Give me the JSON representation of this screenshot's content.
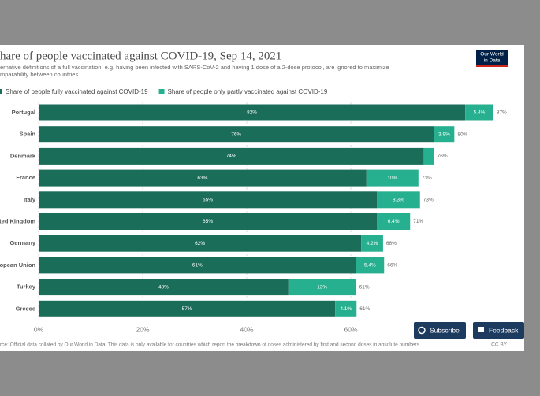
{
  "chart_data": {
    "type": "stacked-bar-horizontal",
    "title": "hare of people vaccinated against COVID-19, Sep 14, 2021",
    "subtitle": [
      "ernative definitions of a full vaccination, e.g. having been infected with SARS-CoV-2 and having 1 dose of a 2-dose protocol, are ignored to maximize",
      "mparability between countries."
    ],
    "categories": [
      "Portugal",
      "Spain",
      "Denmark",
      "France",
      "Italy",
      "ted Kingdom",
      "Germany",
      "opean Union",
      "Turkey",
      "Greece"
    ],
    "series": [
      {
        "name": "Share of people fully vaccinated against COVID-19",
        "color": "#1a6d58",
        "values": [
          82,
          76,
          74,
          63,
          65,
          65,
          62,
          61,
          48,
          57
        ],
        "value_labels": [
          "82%",
          "76%",
          "74%",
          "63%",
          "65%",
          "65%",
          "62%",
          "61%",
          "48%",
          "57%"
        ]
      },
      {
        "name": "Share of people only partly vaccinated against COVID-19",
        "color": "#27b08f",
        "values": [
          5.4,
          3.9,
          2,
          10,
          8.3,
          6.4,
          4.2,
          5.4,
          13,
          4.1
        ],
        "value_labels": [
          "5.4%",
          "3.9%",
          null,
          "10%",
          "8.3%",
          "6.4%",
          "4.2%",
          "5.4%",
          "13%",
          "4.1%"
        ]
      }
    ],
    "totals": [
      87,
      80,
      76,
      73,
      73,
      71,
      66,
      66,
      61,
      61
    ],
    "total_labels": [
      "87%",
      "80%",
      "76%",
      "73%",
      "73%",
      "71%",
      "66%",
      "66%",
      "61%",
      "61%"
    ],
    "xlim": [
      0,
      90
    ],
    "xticks": [
      {
        "value": 0,
        "label": "0%"
      },
      {
        "value": 20,
        "label": "20%"
      },
      {
        "value": 40,
        "label": "40%"
      },
      {
        "value": 60,
        "label": "60%"
      }
    ],
    "grid": true,
    "source": "rce: Official data collated by Our World in Data. This data is only available for countries which report the breakdown of doses administered by first and second doses in absolute numbers.",
    "license": "CC BY"
  },
  "ui": {
    "logo": [
      "Our World",
      "in Data"
    ],
    "buttons": [
      "Subscribe",
      "Feedback"
    ]
  }
}
